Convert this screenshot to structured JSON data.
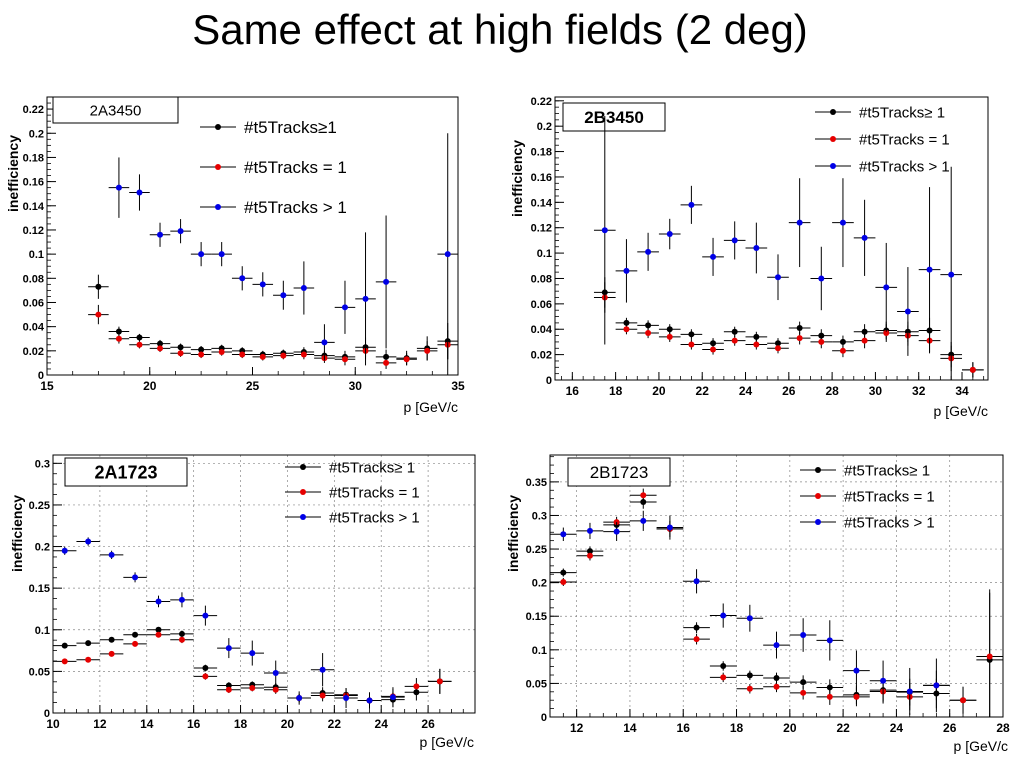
{
  "slide": {
    "title": "Same effect at high fields (2 deg)"
  },
  "chart_data": [
    {
      "type": "scatter",
      "title": "2A3450",
      "xlabel": "p [GeV/c",
      "ylabel": "inefficiency",
      "xlim": [
        15,
        35
      ],
      "ylim": [
        0,
        0.23
      ],
      "xticks": [
        "15",
        "20",
        "25",
        "30",
        "35"
      ],
      "yticks": [
        "0",
        "0.02",
        "0.04",
        "0.06",
        "0.08",
        "0.1",
        "0.12",
        "0.14",
        "0.16",
        "0.18",
        "0.2",
        "0.22"
      ],
      "grid": false,
      "legend_position": "top-right",
      "series": [
        {
          "name": "#t5Tracks≥1",
          "color": "#000000",
          "x": [
            17.5,
            18.5,
            19.5,
            20.5,
            21.5,
            22.5,
            23.5,
            24.5,
            25.5,
            26.5,
            27.5,
            28.5,
            29.5,
            30.5,
            31.5,
            32.5,
            33.5,
            34.5
          ],
          "y": [
            0.073,
            0.036,
            0.031,
            0.026,
            0.023,
            0.021,
            0.022,
            0.02,
            0.017,
            0.018,
            0.019,
            0.016,
            0.015,
            0.023,
            0.015,
            0.014,
            0.022,
            0.028
          ],
          "yerr": [
            0.01,
            0.004,
            0.003,
            0.003,
            0.003,
            0.003,
            0.003,
            0.003,
            0.003,
            0.003,
            0.004,
            0.004,
            0.005,
            0.008,
            0.006,
            0.006,
            0.01,
            0.015
          ]
        },
        {
          "name": "#t5Tracks = 1",
          "color": "#e60000",
          "x": [
            17.5,
            18.5,
            19.5,
            20.5,
            21.5,
            22.5,
            23.5,
            24.5,
            25.5,
            26.5,
            27.5,
            28.5,
            29.5,
            30.5,
            31.5,
            32.5,
            33.5,
            34.5
          ],
          "y": [
            0.05,
            0.03,
            0.025,
            0.022,
            0.018,
            0.017,
            0.019,
            0.017,
            0.015,
            0.016,
            0.017,
            0.014,
            0.013,
            0.02,
            0.01,
            0.013,
            0.02,
            0.025
          ],
          "yerr": [
            0.008,
            0.004,
            0.003,
            0.003,
            0.003,
            0.003,
            0.003,
            0.003,
            0.003,
            0.003,
            0.004,
            0.004,
            0.005,
            0.007,
            0.005,
            0.005,
            0.008,
            0.012
          ]
        },
        {
          "name": "#t5Tracks > 1",
          "color": "#0000e6",
          "x": [
            18.5,
            19.5,
            20.5,
            21.5,
            22.5,
            23.5,
            24.5,
            25.5,
            26.5,
            27.5,
            28.5,
            29.5,
            30.5,
            31.5,
            34.5
          ],
          "y": [
            0.155,
            0.151,
            0.116,
            0.119,
            0.1,
            0.1,
            0.08,
            0.075,
            0.066,
            0.072,
            0.027,
            0.056,
            0.063,
            0.077,
            0.1
          ],
          "yerr": [
            0.025,
            0.015,
            0.01,
            0.01,
            0.01,
            0.01,
            0.01,
            0.01,
            0.012,
            0.022,
            0.015,
            0.022,
            0.055,
            0.055,
            0.1
          ]
        }
      ]
    },
    {
      "type": "scatter",
      "title": "2B3450",
      "xlabel": "p [GeV/c",
      "ylabel": "inefficiency",
      "xlim": [
        15.2,
        35.2
      ],
      "ylim": [
        0,
        0.223
      ],
      "xticks": [
        "16",
        "18",
        "20",
        "22",
        "24",
        "26",
        "28",
        "30",
        "32",
        "34"
      ],
      "yticks": [
        "0",
        "0.02",
        "0.04",
        "0.06",
        "0.08",
        "0.1",
        "0.12",
        "0.14",
        "0.16",
        "0.18",
        "0.2",
        "0.22"
      ],
      "grid": false,
      "legend_position": "top-right",
      "series": [
        {
          "name": "#t5Tracks≥ 1",
          "color": "#000000",
          "x": [
            17.5,
            18.5,
            19.5,
            20.5,
            21.5,
            22.5,
            23.5,
            24.5,
            25.5,
            26.5,
            27.5,
            28.5,
            29.5,
            30.5,
            31.5,
            32.5,
            33.5,
            34.5
          ],
          "y": [
            0.069,
            0.045,
            0.043,
            0.04,
            0.036,
            0.029,
            0.038,
            0.034,
            0.029,
            0.041,
            0.035,
            0.03,
            0.038,
            0.039,
            0.038,
            0.039,
            0.02,
            0.008
          ],
          "yerr": [
            0.012,
            0.004,
            0.004,
            0.004,
            0.004,
            0.004,
            0.004,
            0.004,
            0.004,
            0.005,
            0.005,
            0.005,
            0.006,
            0.007,
            0.008,
            0.01,
            0.01,
            0.006
          ]
        },
        {
          "name": "#t5Tracks = 1",
          "color": "#e60000",
          "x": [
            17.5,
            18.5,
            19.5,
            20.5,
            21.5,
            22.5,
            23.5,
            24.5,
            25.5,
            26.5,
            27.5,
            28.5,
            29.5,
            30.5,
            31.5,
            32.5,
            33.5,
            34.5
          ],
          "y": [
            0.065,
            0.04,
            0.037,
            0.034,
            0.028,
            0.024,
            0.031,
            0.028,
            0.025,
            0.033,
            0.03,
            0.023,
            0.031,
            0.037,
            0.035,
            0.031,
            0.017,
            0.008
          ],
          "yerr": [
            0.012,
            0.004,
            0.004,
            0.004,
            0.004,
            0.004,
            0.004,
            0.004,
            0.004,
            0.005,
            0.005,
            0.005,
            0.006,
            0.007,
            0.008,
            0.01,
            0.01,
            0.006
          ]
        },
        {
          "name": "#t5Tracks > 1",
          "color": "#0000e6",
          "x": [
            17.5,
            18.5,
            19.5,
            20.5,
            21.5,
            22.5,
            23.5,
            24.5,
            25.5,
            26.5,
            27.5,
            28.5,
            29.5,
            30.5,
            31.5,
            32.5,
            33.5
          ],
          "y": [
            0.118,
            0.086,
            0.101,
            0.115,
            0.138,
            0.097,
            0.11,
            0.104,
            0.081,
            0.124,
            0.08,
            0.124,
            0.112,
            0.073,
            0.054,
            0.087,
            0.083
          ],
          "yerr": [
            0.09,
            0.025,
            0.015,
            0.012,
            0.015,
            0.015,
            0.015,
            0.02,
            0.018,
            0.035,
            0.025,
            0.035,
            0.03,
            0.035,
            0.035,
            0.065,
            0.085
          ]
        }
      ]
    },
    {
      "type": "scatter",
      "title": "2A1723",
      "xlabel": "p [GeV/c",
      "ylabel": "inefficiency",
      "xlim": [
        10,
        28
      ],
      "ylim": [
        0,
        0.31
      ],
      "xticks": [
        "10",
        "12",
        "14",
        "16",
        "18",
        "20",
        "22",
        "24",
        "26"
      ],
      "yticks": [
        "0",
        "0.05",
        "0.1",
        "0.15",
        "0.2",
        "0.25",
        "0.3"
      ],
      "grid": true,
      "legend_position": "top-right",
      "series": [
        {
          "name": "#t5Tracks≥ 1",
          "color": "#000000",
          "x": [
            10.5,
            11.5,
            12.5,
            13.5,
            14.5,
            15.5,
            16.5,
            17.5,
            18.5,
            19.5,
            20.5,
            21.5,
            22.5,
            23.5,
            24.5,
            25.5,
            26.5
          ],
          "y": [
            0.081,
            0.084,
            0.088,
            0.094,
            0.1,
            0.095,
            0.054,
            0.033,
            0.034,
            0.031,
            0.018,
            0.024,
            0.022,
            0.015,
            0.016,
            0.025,
            0.038
          ],
          "yerr": [
            0.003,
            0.003,
            0.003,
            0.003,
            0.003,
            0.004,
            0.004,
            0.004,
            0.004,
            0.005,
            0.005,
            0.007,
            0.008,
            0.008,
            0.009,
            0.01,
            0.015
          ]
        },
        {
          "name": "#t5Tracks = 1",
          "color": "#e60000",
          "x": [
            10.5,
            11.5,
            12.5,
            13.5,
            14.5,
            15.5,
            16.5,
            17.5,
            18.5,
            19.5,
            20.5,
            21.5,
            22.5,
            23.5,
            24.5,
            25.5,
            26.5
          ],
          "y": [
            0.062,
            0.064,
            0.071,
            0.083,
            0.094,
            0.088,
            0.044,
            0.028,
            0.03,
            0.028,
            0.018,
            0.021,
            0.021,
            0.015,
            0.02,
            0.032,
            0.038
          ],
          "yerr": [
            0.003,
            0.003,
            0.003,
            0.003,
            0.003,
            0.004,
            0.004,
            0.004,
            0.004,
            0.005,
            0.005,
            0.007,
            0.008,
            0.008,
            0.009,
            0.01,
            0.015
          ]
        },
        {
          "name": "#t5Tracks > 1",
          "color": "#0000e6",
          "x": [
            10.5,
            11.5,
            12.5,
            13.5,
            14.5,
            15.5,
            16.5,
            17.5,
            18.5,
            19.5,
            20.5,
            21.5,
            22.5,
            23.5,
            24.5
          ],
          "y": [
            0.195,
            0.206,
            0.19,
            0.163,
            0.134,
            0.136,
            0.117,
            0.078,
            0.072,
            0.048,
            0.018,
            0.052,
            0.018,
            0.015,
            0.019
          ],
          "yerr": [
            0.005,
            0.005,
            0.005,
            0.006,
            0.007,
            0.009,
            0.012,
            0.012,
            0.015,
            0.015,
            0.008,
            0.02,
            0.012,
            0.01,
            0.012
          ]
        }
      ]
    },
    {
      "type": "scatter",
      "title": "2B1723",
      "xlabel": "p [GeV/c",
      "ylabel": "inefficiency",
      "xlim": [
        11,
        28
      ],
      "ylim": [
        0,
        0.39
      ],
      "xticks": [
        "12",
        "14",
        "16",
        "18",
        "20",
        "22",
        "24",
        "26",
        "28"
      ],
      "yticks": [
        "0",
        "0.05",
        "0.1",
        "0.15",
        "0.2",
        "0.25",
        "0.3",
        "0.35"
      ],
      "grid": true,
      "legend_position": "top-right",
      "series": [
        {
          "name": "#t5Tracks≥ 1",
          "color": "#000000",
          "x": [
            11.5,
            12.5,
            13.5,
            14.5,
            15.5,
            16.5,
            17.5,
            18.5,
            19.5,
            20.5,
            21.5,
            22.5,
            23.5,
            24.5,
            25.5,
            26.5,
            27.5
          ],
          "y": [
            0.215,
            0.247,
            0.286,
            0.32,
            0.28,
            0.133,
            0.076,
            0.062,
            0.058,
            0.052,
            0.044,
            0.033,
            0.04,
            0.037,
            0.035,
            0.025,
            0.085
          ],
          "yerr": [
            0.006,
            0.007,
            0.008,
            0.01,
            0.012,
            0.008,
            0.007,
            0.007,
            0.008,
            0.01,
            0.012,
            0.014,
            0.018,
            0.02,
            0.022,
            0.02,
            0.1
          ]
        },
        {
          "name": "#t5Tracks = 1",
          "color": "#e60000",
          "x": [
            11.5,
            12.5,
            13.5,
            14.5,
            15.5,
            16.5,
            17.5,
            18.5,
            19.5,
            20.5,
            21.5,
            22.5,
            23.5,
            24.5,
            25.5,
            26.5,
            27.5
          ],
          "y": [
            0.201,
            0.24,
            0.29,
            0.33,
            0.28,
            0.116,
            0.059,
            0.042,
            0.045,
            0.036,
            0.03,
            0.03,
            0.038,
            0.03,
            0.047,
            0.025,
            0.09
          ],
          "yerr": [
            0.006,
            0.007,
            0.008,
            0.01,
            0.012,
            0.008,
            0.007,
            0.007,
            0.008,
            0.01,
            0.012,
            0.014,
            0.018,
            0.02,
            0.022,
            0.02,
            0.1
          ]
        },
        {
          "name": "#t5Tracks > 1",
          "color": "#0000e6",
          "x": [
            11.5,
            12.5,
            13.5,
            14.5,
            15.5,
            16.5,
            17.5,
            18.5,
            19.5,
            20.5,
            21.5,
            22.5,
            23.5,
            24.5,
            25.5
          ],
          "y": [
            0.272,
            0.277,
            0.276,
            0.292,
            0.282,
            0.202,
            0.151,
            0.147,
            0.107,
            0.122,
            0.114,
            0.069,
            0.054,
            0.038,
            0.047
          ],
          "yerr": [
            0.01,
            0.012,
            0.014,
            0.015,
            0.018,
            0.018,
            0.018,
            0.02,
            0.02,
            0.025,
            0.03,
            0.03,
            0.03,
            0.035,
            0.04
          ]
        }
      ]
    }
  ]
}
